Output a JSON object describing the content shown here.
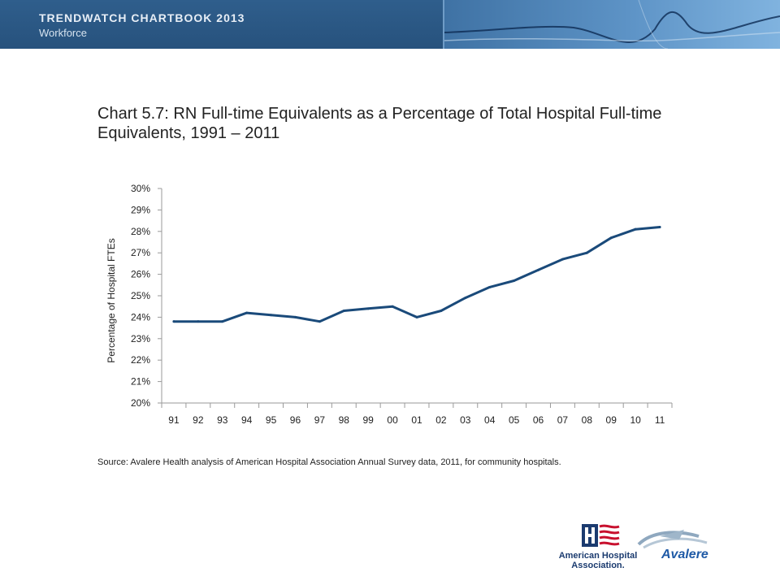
{
  "header": {
    "title": "TRENDWATCH CHARTBOOK 2013",
    "subtitle": "Workforce"
  },
  "title": "Chart 5.7: RN Full-time Equivalents as a Percentage of Total Hospital Full-time Equivalents, 1991 – 2011",
  "source": "Source: Avalere Health analysis of American Hospital Association Annual Survey data, 2011, for community hospitals.",
  "logos": {
    "aha": "American Hospital Association.",
    "avalere": "Avalere"
  },
  "colors": {
    "banner": "#2d5a86",
    "line": "#1a4a7a",
    "axis": "#9a9a9a"
  },
  "chart_data": {
    "type": "line",
    "ylabel": "Percentage of Hospital FTEs",
    "xlabel": "",
    "categories": [
      "91",
      "92",
      "93",
      "94",
      "95",
      "96",
      "97",
      "98",
      "99",
      "00",
      "01",
      "02",
      "03",
      "04",
      "05",
      "06",
      "07",
      "08",
      "09",
      "10",
      "11"
    ],
    "values": [
      23.8,
      23.8,
      23.8,
      24.2,
      24.1,
      24.0,
      23.8,
      24.3,
      24.4,
      24.5,
      24.0,
      24.3,
      24.9,
      25.4,
      25.7,
      26.2,
      26.7,
      27.0,
      27.7,
      28.1,
      28.2
    ],
    "ylim": [
      20,
      30
    ],
    "yticks": [
      20,
      21,
      22,
      23,
      24,
      25,
      26,
      27,
      28,
      29,
      30
    ],
    "ytick_labels": [
      "20%",
      "21%",
      "22%",
      "23%",
      "24%",
      "25%",
      "26%",
      "27%",
      "28%",
      "29%",
      "30%"
    ],
    "grid": false,
    "legend": "none"
  }
}
